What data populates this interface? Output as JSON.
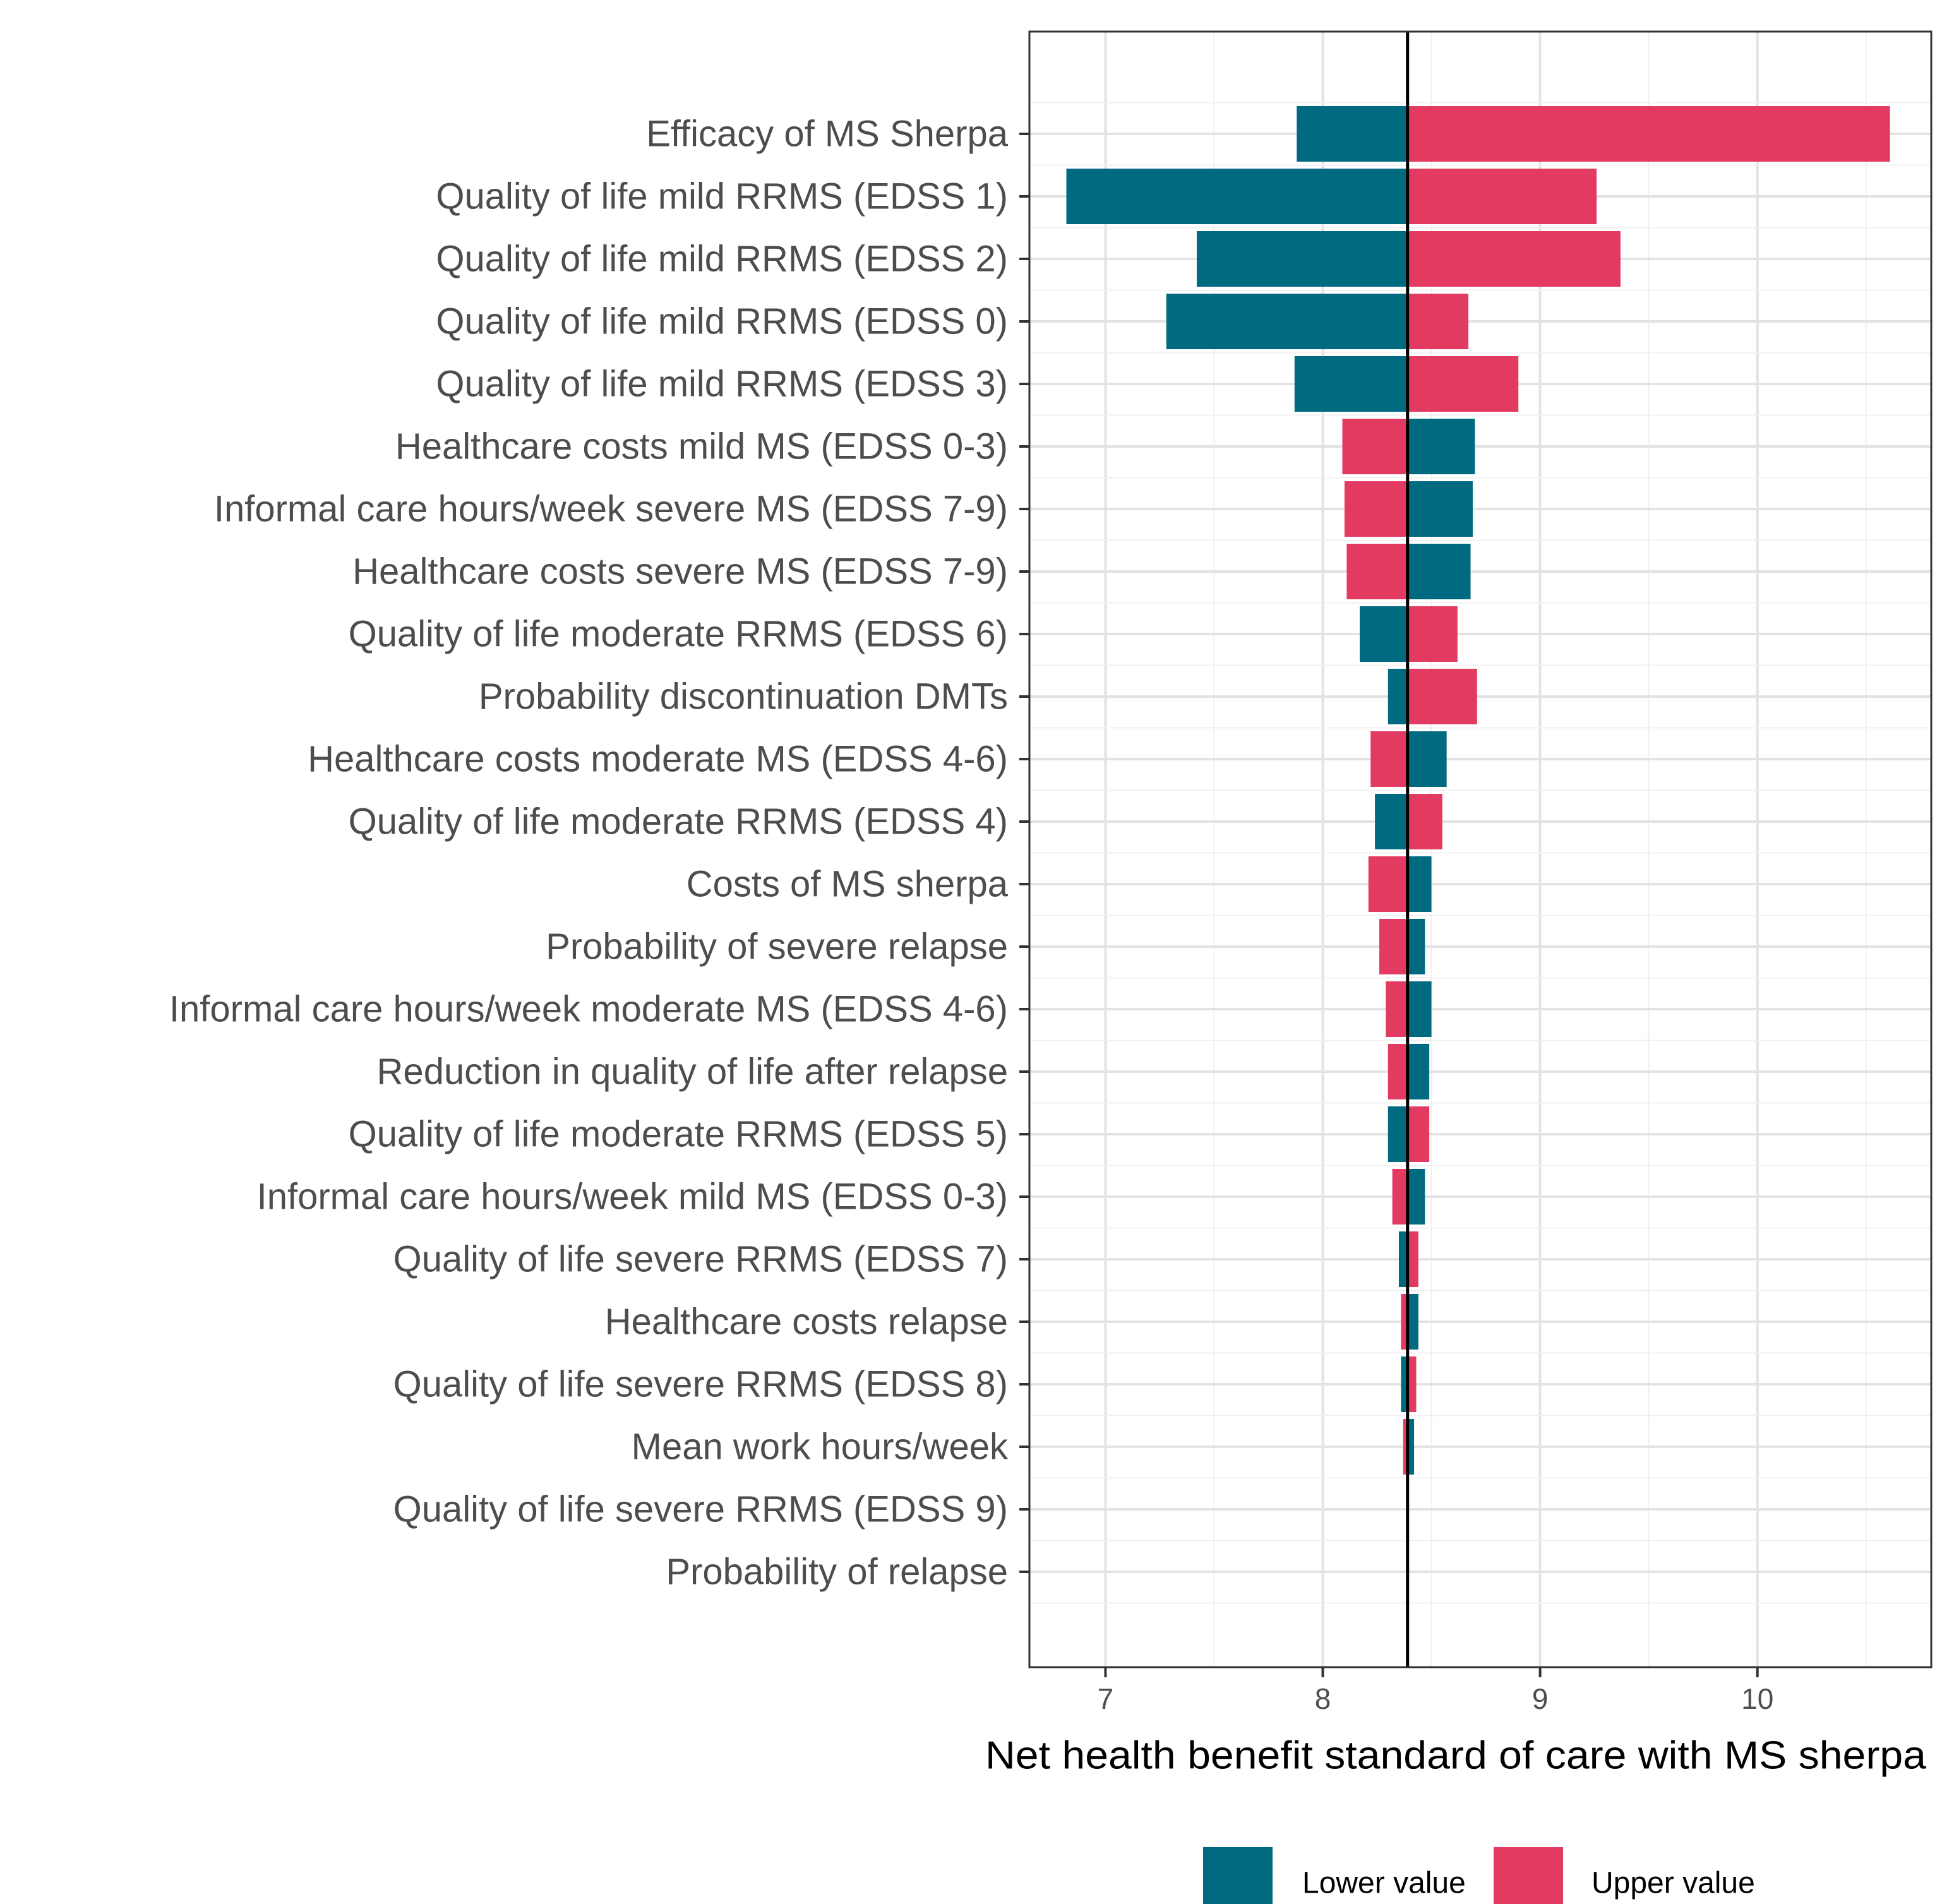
{
  "chart_data": {
    "type": "bar",
    "orientation": "horizontal",
    "subtype": "tornado",
    "title": "",
    "xlabel": "Net health benefit standard of care with MS sherpa",
    "ylabel": "",
    "baseline": 8.39,
    "xlim": [
      6.65,
      10.8
    ],
    "xticks": [
      7,
      8,
      9,
      10
    ],
    "xtick_labels": [
      "7",
      "8",
      "9",
      "10"
    ],
    "grid": true,
    "legend_position": "bottom",
    "categories": [
      "Efficacy of MS Sherpa",
      "Quality of life mild RRMS (EDSS 1)",
      "Quality of life mild RRMS (EDSS 2)",
      "Quality of life mild RRMS (EDSS 0)",
      "Quality of life mild RRMS (EDSS 3)",
      "Healthcare costs mild MS (EDSS 0-3)",
      "Informal care hours/week severe MS (EDSS 7-9)",
      "Healthcare costs severe MS (EDSS 7-9)",
      "Quality of life moderate RRMS (EDSS 6)",
      "Probability discontinuation DMTs",
      "Healthcare costs moderate MS (EDSS 4-6)",
      "Quality of life moderate RRMS (EDSS 4)",
      "Costs of MS sherpa",
      "Probability of severe relapse",
      "Informal care hours/week moderate MS (EDSS 4-6)",
      "Reduction in quality of life after relapse",
      "Quality of life moderate RRMS (EDSS 5)",
      "Informal care hours/week mild MS (EDSS 0-3)",
      "Quality of life severe RRMS (EDSS 7)",
      "Healthcare costs relapse",
      "Quality of life severe RRMS (EDSS 8)",
      "Mean work hours/week",
      "Quality of life severe RRMS (EDSS 9)",
      "Probability of relapse"
    ],
    "series": [
      {
        "name": "Lower value",
        "color": "#006a80",
        "values": [
          7.88,
          6.82,
          7.42,
          7.28,
          7.87,
          8.7,
          8.69,
          8.68,
          8.17,
          8.3,
          8.57,
          8.24,
          8.5,
          8.47,
          8.5,
          8.49,
          8.3,
          8.47,
          8.35,
          8.44,
          8.36,
          8.42,
          8.39,
          8.39
        ]
      },
      {
        "name": "Upper value",
        "color": "#e33a62",
        "values": [
          10.61,
          9.26,
          9.37,
          8.67,
          8.9,
          8.09,
          8.1,
          8.11,
          8.62,
          8.71,
          8.22,
          8.55,
          8.21,
          8.26,
          8.29,
          8.3,
          8.49,
          8.32,
          8.44,
          8.36,
          8.43,
          8.37,
          8.39,
          8.39
        ]
      }
    ]
  }
}
